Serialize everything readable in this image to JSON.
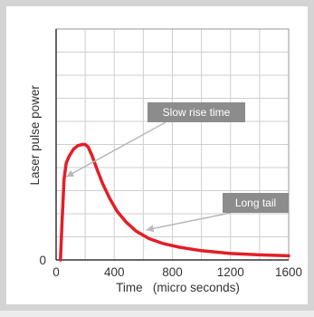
{
  "chart_data": {
    "type": "line",
    "title": "",
    "xlabel": "Time   (micro seconds)",
    "ylabel": "Laser pulse power",
    "xlim": [
      0,
      1600
    ],
    "ylim": [
      0,
      1
    ],
    "grid": true,
    "x_ticks": [
      0,
      400,
      800,
      1200,
      1600
    ],
    "x_tick_labels": [
      "0",
      "400",
      "800",
      "1200",
      "1600"
    ],
    "y_tick_labels": [
      "0"
    ],
    "series": [
      {
        "color": "#e41e26",
        "x": [
          30,
          40,
          55,
          70,
          90,
          120,
          150,
          180,
          200,
          220,
          245,
          280,
          320,
          370,
          420,
          480,
          550,
          640,
          740,
          850,
          1000,
          1200,
          1400,
          1600
        ],
        "y": [
          0.0,
          0.15,
          0.35,
          0.42,
          0.45,
          0.48,
          0.495,
          0.5,
          0.5,
          0.49,
          0.455,
          0.395,
          0.33,
          0.265,
          0.21,
          0.165,
          0.125,
          0.092,
          0.07,
          0.055,
          0.04,
          0.028,
          0.022,
          0.018
        ]
      }
    ],
    "annotations": [
      {
        "text": "Slow rise time",
        "target_x": 70,
        "target_y": 0.36
      },
      {
        "text": "Long tail",
        "target_x": 620,
        "target_y": 0.13
      }
    ]
  },
  "colors": {
    "curve": "#e41e26",
    "grid": "#cfcfcf",
    "callout_fill": "#8c8c8c",
    "arrow": "#b8b8b8"
  }
}
